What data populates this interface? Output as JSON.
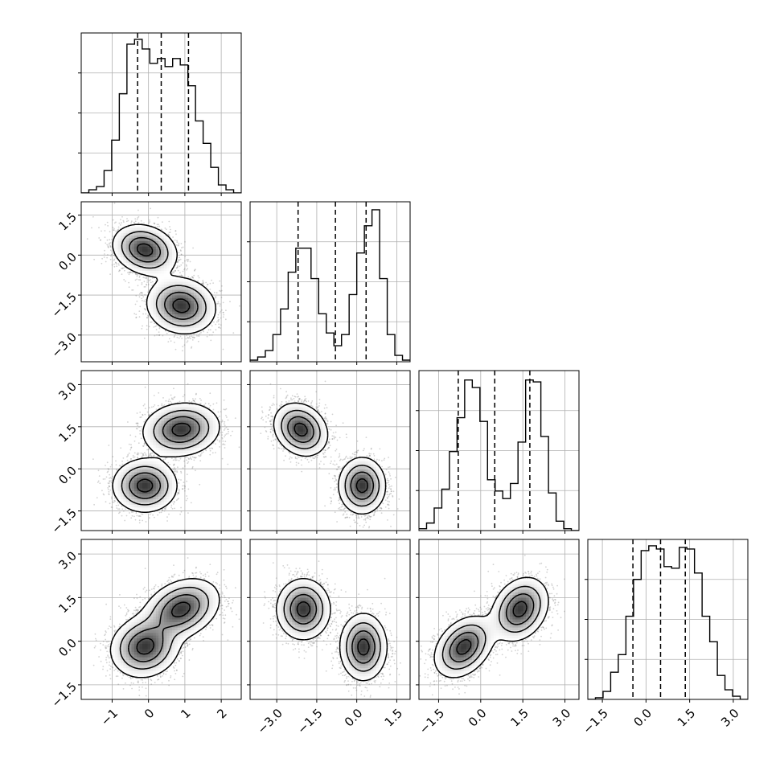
{
  "chart_data": {
    "type": "corner",
    "grid": true,
    "parameters": 4,
    "colors": {
      "hist": "#000000",
      "contour": "#000000",
      "points": "#7f7f7f",
      "density": "#000000"
    },
    "axis_ticks": [
      {
        "ticks": [
          -1,
          0,
          1,
          2
        ],
        "labels": [
          "−1",
          "0",
          "1",
          "2"
        ],
        "range": [
          -1.85,
          2.55
        ]
      },
      {
        "ticks": [
          -3.0,
          -1.5,
          0.0,
          1.5
        ],
        "labels": [
          "−3.0",
          "−1.5",
          "0.0",
          "1.5"
        ],
        "range": [
          -4.0,
          2.0
        ]
      },
      {
        "ticks": [
          -1.5,
          0.0,
          1.5,
          3.0
        ],
        "labels": [
          "−1.5",
          "0.0",
          "1.5",
          "3.0"
        ],
        "range": [
          -2.2,
          3.5
        ]
      },
      {
        "ticks": [
          -1.5,
          0.0,
          1.5,
          3.0
        ],
        "labels": [
          "−1.5",
          "0.0",
          "1.5",
          "3.0"
        ],
        "range": [
          -2.0,
          3.5
        ]
      }
    ],
    "quantiles": [
      [
        -0.3,
        0.35,
        1.1
      ],
      [
        -2.2,
        -0.8,
        0.35
      ],
      [
        -0.8,
        0.5,
        1.75
      ],
      [
        -0.45,
        0.5,
        1.35
      ]
    ],
    "histograms": [
      {
        "edges_range": [
          -1.85,
          2.55
        ],
        "counts": [
          0,
          2,
          4,
          14,
          33,
          62,
          93,
          96,
          90,
          81,
          84,
          79,
          84,
          80,
          67,
          45,
          31,
          16,
          5,
          2,
          0
        ],
        "ymax": 100
      },
      {
        "edges_range": [
          -4.0,
          2.0
        ],
        "counts": [
          1,
          3,
          7,
          17,
          33,
          56,
          71,
          71,
          52,
          30,
          18,
          10,
          17,
          42,
          68,
          85,
          95,
          52,
          17,
          4,
          1
        ],
        "ymax": 100
      },
      {
        "edges_range": [
          -2.2,
          3.5
        ],
        "counts": [
          1,
          4,
          12,
          22,
          42,
          60,
          80,
          76,
          58,
          27,
          21,
          17,
          25,
          47,
          80,
          79,
          50,
          20,
          5,
          1,
          0
        ],
        "ymax": 85
      },
      {
        "edges_range": [
          -2.0,
          3.5
        ],
        "counts": [
          0,
          1,
          5,
          17,
          28,
          52,
          75,
          93,
          96,
          94,
          83,
          82,
          95,
          94,
          79,
          52,
          36,
          15,
          6,
          2,
          0
        ],
        "ymax": 100
      }
    ],
    "density_modes": [
      {
        "row": 1,
        "col": 0,
        "modes": [
          {
            "center": [
              -0.1,
              0.2
            ],
            "sd": [
              0.42,
              0.45
            ],
            "rho": -0.2,
            "n": 2400
          },
          {
            "center": [
              0.9,
              -1.9
            ],
            "sd": [
              0.45,
              0.5
            ],
            "rho": -0.1,
            "n": 2400
          }
        ]
      },
      {
        "row": 2,
        "col": 0,
        "modes": [
          {
            "center": [
              -0.1,
              -0.6
            ],
            "sd": [
              0.42,
              0.45
            ],
            "rho": 0.0,
            "n": 2400
          },
          {
            "center": [
              0.9,
              1.4
            ],
            "sd": [
              0.5,
              0.45
            ],
            "rho": 0.1,
            "n": 2400
          }
        ]
      },
      {
        "row": 2,
        "col": 1,
        "modes": [
          {
            "center": [
              -2.1,
              1.4
            ],
            "sd": [
              0.48,
              0.45
            ],
            "rho": -0.2,
            "n": 2400
          },
          {
            "center": [
              0.2,
              -0.6
            ],
            "sd": [
              0.42,
              0.48
            ],
            "rho": 0.0,
            "n": 2400
          }
        ]
      },
      {
        "row": 3,
        "col": 0,
        "modes": [
          {
            "center": [
              -0.1,
              -0.2
            ],
            "sd": [
              0.45,
              0.5
            ],
            "rho": 0.1,
            "n": 2400
          },
          {
            "center": [
              0.9,
              1.1
            ],
            "sd": [
              0.5,
              0.5
            ],
            "rho": 0.3,
            "n": 2400
          }
        ]
      },
      {
        "row": 3,
        "col": 1,
        "modes": [
          {
            "center": [
              -2.0,
              1.1
            ],
            "sd": [
              0.48,
              0.5
            ],
            "rho": 0.0,
            "n": 2400
          },
          {
            "center": [
              0.25,
              -0.2
            ],
            "sd": [
              0.42,
              0.55
            ],
            "rho": 0.0,
            "n": 2400
          }
        ]
      },
      {
        "row": 3,
        "col": 2,
        "modes": [
          {
            "center": [
              -0.6,
              -0.2
            ],
            "sd": [
              0.5,
              0.5
            ],
            "rho": 0.35,
            "n": 2400
          },
          {
            "center": [
              1.4,
              1.1
            ],
            "sd": [
              0.48,
              0.52
            ],
            "rho": 0.25,
            "n": 2400
          }
        ]
      }
    ]
  }
}
